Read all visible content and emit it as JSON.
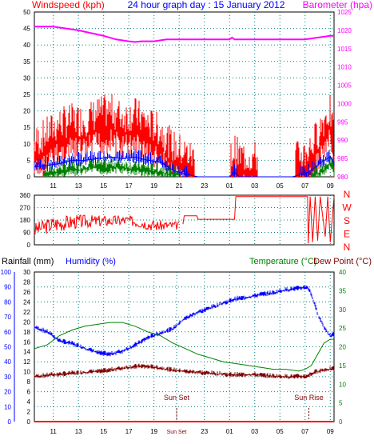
{
  "chart_data": [
    {
      "type": "line",
      "title": "24 hour graph day : 15 January 2012",
      "ylabel_left": "Windspeed (kph)",
      "ylabel_right": "Barometer (hpa)",
      "ylim_left": [
        0,
        50
      ],
      "yticks_left": [
        "0",
        "5",
        "10",
        "15",
        "20",
        "25",
        "30",
        "35",
        "40",
        "45",
        "50"
      ],
      "ylim_right": [
        980,
        1025
      ],
      "yticks_right": [
        "980",
        "985",
        "990",
        "995",
        "1000",
        "1005",
        "1010",
        "1015",
        "1020",
        "1025"
      ],
      "x_ticks": [
        "11",
        "13",
        "15",
        "17",
        "19",
        "21",
        "23",
        "01",
        "03",
        "05",
        "07",
        "09"
      ],
      "x_range_hours": [
        9.5,
        33.3
      ],
      "grid": true,
      "colors": {
        "gust": "#ff0000",
        "average": "#0000ff",
        "low": "#008000",
        "barometer": "#ff00ff",
        "axis_left": "#ff0000",
        "axis_right": "#ff00ff",
        "title": "#0000ff"
      },
      "series": [
        {
          "key": "barometer",
          "x": [
            9.5,
            11,
            13,
            15,
            16,
            17,
            17.5,
            18,
            19,
            20,
            21,
            23,
            25,
            25.2,
            25.4,
            27,
            29,
            31,
            32,
            33,
            33.3
          ],
          "y": [
            1021,
            1021,
            1020,
            1018.5,
            1017.5,
            1017,
            1016.8,
            1017,
            1017,
            1017.5,
            1017.5,
            1017.5,
            1017.5,
            1018,
            1017.5,
            1017.5,
            1017.5,
            1017.5,
            1018,
            1018.5,
            1018.5
          ]
        },
        {
          "key": "gust",
          "x": [
            9.5,
            10.5,
            11.5,
            12.5,
            13.5,
            14.5,
            15.5,
            16.5,
            17.5,
            18.5,
            19.5,
            20.5,
            21.5,
            22,
            22.5,
            25,
            25.4,
            25.8,
            26.5,
            28,
            30,
            31,
            31.5,
            32,
            32.5,
            33,
            33.3
          ],
          "y": [
            5,
            8,
            11,
            12,
            12,
            14,
            15,
            13,
            14,
            11,
            9,
            4,
            2,
            1,
            0,
            0,
            3,
            1,
            1,
            0,
            0,
            2,
            4,
            8,
            12,
            15,
            5
          ]
        },
        {
          "key": "average",
          "x": [
            9.5,
            10.5,
            11.5,
            12.5,
            13.5,
            14.5,
            15.5,
            16.5,
            17.5,
            18.5,
            19.5,
            20.5,
            21.5,
            22.5,
            25,
            25.4,
            25.8,
            30,
            31,
            31.5,
            32,
            32.5,
            33,
            33.3
          ],
          "y": [
            3,
            3.5,
            4,
            5,
            5,
            5.5,
            6,
            5.5,
            6,
            5,
            4.5,
            2,
            0.8,
            0,
            0,
            1.5,
            0,
            0,
            1,
            2,
            3.5,
            5,
            6,
            4
          ]
        },
        {
          "key": "low",
          "x": [
            9.5,
            11,
            12,
            13,
            14,
            15,
            16,
            17,
            18,
            19,
            20,
            21,
            22,
            31,
            32,
            32.5,
            33,
            33.3
          ],
          "y": [
            0,
            1,
            2,
            2,
            3,
            2.5,
            3,
            2.5,
            2,
            1.5,
            1,
            0.5,
            0,
            0,
            1,
            2,
            4,
            2
          ]
        }
      ]
    },
    {
      "type": "line",
      "ylabel_right_letters": [
        "N",
        "W",
        "S",
        "E",
        "N"
      ],
      "ylim": [
        0,
        360
      ],
      "yticks": [
        "0",
        "90",
        "180",
        "270",
        "360"
      ],
      "x_ticks": [
        "11",
        "13",
        "15",
        "17",
        "19",
        "21",
        "23",
        "01",
        "03",
        "05",
        "07",
        "09"
      ],
      "grid": true,
      "colors": {
        "direction": "#ff0000",
        "axis": "#ff0000"
      },
      "series": [
        {
          "key": "direction",
          "x": [
            9.5,
            10.5,
            11.5,
            12.5,
            13.5,
            14.5,
            15.5,
            16.5,
            17.5,
            18.5,
            19.5,
            20.5,
            21.3,
            21.4,
            22.4,
            22.5,
            25.4,
            25.5,
            31.2,
            31.25,
            31.4,
            31.6,
            31.8,
            32,
            32.2,
            32.6,
            32.8,
            33,
            33.3
          ],
          "y": [
            110,
            145,
            150,
            160,
            170,
            175,
            180,
            185,
            180,
            165,
            145,
            140,
            150,
            210,
            210,
            185,
            185,
            350,
            350,
            10,
            350,
            20,
            350,
            30,
            350,
            60,
            350,
            20,
            350
          ]
        },
        {
          "key": "direction_spread",
          "x": [
            9.5,
            11,
            13,
            15,
            17,
            19,
            21
          ],
          "y_low": [
            60,
            90,
            120,
            130,
            140,
            100,
            110
          ],
          "y_high": [
            160,
            210,
            220,
            215,
            215,
            180,
            170
          ]
        }
      ]
    },
    {
      "type": "line",
      "ylabel_left": "Rainfall (mm)",
      "ylabel_left2": "Humidity (%)",
      "ylabel_right": "Temperature (°C)",
      "ylabel_right2": "Dew Point (°C)",
      "ylim_humidity": [
        0,
        100
      ],
      "yticks_humidity": [
        "0",
        "10",
        "20",
        "30",
        "40",
        "50",
        "60",
        "70",
        "80",
        "90",
        "100"
      ],
      "ylim_rain": [
        0,
        30
      ],
      "yticks_rain": [
        "0",
        "2",
        "4",
        "6",
        "8",
        "10",
        "12",
        "14",
        "16",
        "18",
        "20",
        "22",
        "24",
        "26",
        "28",
        "30"
      ],
      "ylim_temp": [
        0,
        40
      ],
      "yticks_temp": [
        "0",
        "5",
        "10",
        "15",
        "20",
        "25",
        "30",
        "35",
        "40"
      ],
      "x_ticks": [
        "11",
        "13",
        "15",
        "17",
        "19",
        "Sun Set",
        "23",
        "01",
        "03",
        "05",
        "07",
        "09"
      ],
      "x_tick_hours": [
        11,
        13,
        15,
        17,
        19,
        20.8,
        23,
        25,
        27,
        29,
        31,
        33
      ],
      "annotations": [
        {
          "text": "Sun Set",
          "x": 20.8
        },
        {
          "text": "Sun Rise",
          "x": 31.3
        }
      ],
      "grid": true,
      "colors": {
        "humidity": "#0000ff",
        "temperature": "#008000",
        "dewpoint": "#800000",
        "rainfall": "#ff0000",
        "axis_rain": "#ff0000",
        "axis_humidity": "#0000ff",
        "axis_temp": "#008000"
      },
      "series": [
        {
          "key": "humidity",
          "x": [
            9.5,
            10.5,
            11.5,
            12.5,
            13.5,
            14.5,
            15.5,
            16.5,
            17.5,
            18.5,
            19.5,
            20.5,
            21.5,
            22.5,
            23.5,
            24.5,
            25.5,
            26.5,
            27.5,
            28.5,
            29.5,
            30.5,
            31.2,
            31.5,
            32,
            32.5,
            33,
            33.3
          ],
          "y": [
            63,
            60,
            54,
            52,
            49,
            46,
            45,
            47,
            51,
            56,
            59,
            62,
            69,
            73,
            76,
            79,
            82,
            83,
            85,
            86,
            88,
            89,
            90,
            85,
            72,
            63,
            57,
            58
          ]
        },
        {
          "key": "temperature",
          "x": [
            9.5,
            10.5,
            11.5,
            12.5,
            13.5,
            14.5,
            15.5,
            16.5,
            17.5,
            18.5,
            19.5,
            20.5,
            21.5,
            22.5,
            23.5,
            24.5,
            25.5,
            26.5,
            27.5,
            28.5,
            29.5,
            30.5,
            31,
            31.5,
            32,
            32.5,
            33,
            33.3
          ],
          "y": [
            19.5,
            20.5,
            23,
            24.5,
            25.5,
            26,
            26.5,
            26.5,
            25.5,
            24,
            23,
            21,
            19.5,
            18,
            17,
            16,
            15.5,
            15,
            14.5,
            14,
            14,
            13.5,
            14,
            15,
            18,
            21,
            22,
            22
          ]
        },
        {
          "key": "dewpoint",
          "x": [
            9.5,
            11,
            13,
            15,
            17,
            18,
            19,
            21,
            23,
            25,
            27,
            29,
            31,
            32,
            33,
            33.3
          ],
          "y": [
            12,
            12.5,
            13,
            13.5,
            14.5,
            14.8,
            14.5,
            13.5,
            13,
            12.5,
            12.5,
            12,
            12,
            13.5,
            14,
            14
          ]
        },
        {
          "key": "rainfall",
          "x": [
            9.5,
            33.3
          ],
          "y": [
            0,
            0
          ]
        }
      ]
    }
  ]
}
